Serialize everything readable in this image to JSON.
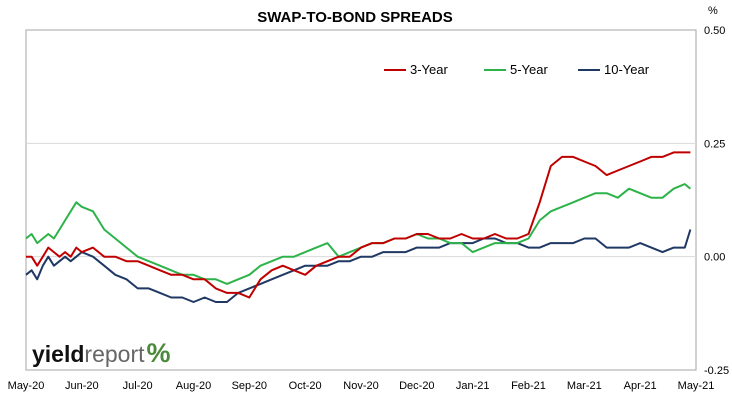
{
  "brand": {
    "yield": "yield",
    "report": "report",
    "pct": "%"
  },
  "chart_data": {
    "type": "line",
    "title": "SWAP-TO-BOND SPREADS",
    "unit": "%",
    "ylim": [
      -0.25,
      0.5
    ],
    "yticks": [
      0.5,
      0.25,
      0.0,
      -0.25
    ],
    "ytick_labels": [
      "0.50",
      "0.25",
      "0.00",
      "-0.25"
    ],
    "xlim": [
      0,
      12
    ],
    "xticks": [
      0,
      1,
      2,
      3,
      4,
      5,
      6,
      7,
      8,
      9,
      10,
      11,
      12
    ],
    "xtick_labels": [
      "May-20",
      "Jun-20",
      "Jul-20",
      "Aug-20",
      "Sep-20",
      "Oct-20",
      "Nov-20",
      "Dec-20",
      "Jan-21",
      "Feb-21",
      "Mar-21",
      "Apr-21",
      "May-21"
    ],
    "grid": "horizontal",
    "legend_position": "top-right",
    "colors": {
      "3-Year": "#c00000",
      "5-Year": "#2db34a",
      "10-Year": "#1f3864"
    },
    "series": [
      {
        "name": "3-Year",
        "color": "#c00000",
        "x": [
          0,
          0.1,
          0.2,
          0.3,
          0.4,
          0.5,
          0.6,
          0.7,
          0.8,
          0.9,
          1.0,
          1.2,
          1.4,
          1.6,
          1.8,
          2.0,
          2.2,
          2.4,
          2.6,
          2.8,
          3.0,
          3.2,
          3.4,
          3.6,
          3.8,
          4.0,
          4.2,
          4.4,
          4.6,
          4.8,
          5.0,
          5.2,
          5.4,
          5.6,
          5.8,
          6.0,
          6.2,
          6.4,
          6.6,
          6.8,
          7.0,
          7.2,
          7.4,
          7.6,
          7.8,
          8.0,
          8.2,
          8.4,
          8.6,
          8.8,
          9.0,
          9.2,
          9.4,
          9.6,
          9.8,
          10.0,
          10.2,
          10.4,
          10.6,
          10.8,
          11.0,
          11.2,
          11.4,
          11.6,
          11.8,
          11.9
        ],
        "y": [
          0.0,
          0.0,
          -0.02,
          0.0,
          0.02,
          0.01,
          0.0,
          0.01,
          0.0,
          0.02,
          0.01,
          0.02,
          0.0,
          0.0,
          -0.01,
          -0.01,
          -0.02,
          -0.03,
          -0.04,
          -0.04,
          -0.05,
          -0.05,
          -0.07,
          -0.08,
          -0.08,
          -0.09,
          -0.05,
          -0.03,
          -0.02,
          -0.03,
          -0.04,
          -0.02,
          -0.01,
          0.0,
          0.0,
          0.02,
          0.03,
          0.03,
          0.04,
          0.04,
          0.05,
          0.05,
          0.04,
          0.04,
          0.05,
          0.04,
          0.04,
          0.05,
          0.04,
          0.04,
          0.05,
          0.12,
          0.2,
          0.22,
          0.22,
          0.21,
          0.2,
          0.18,
          0.19,
          0.2,
          0.21,
          0.22,
          0.22,
          0.23,
          0.23,
          0.23
        ]
      },
      {
        "name": "5-Year",
        "color": "#2db34a",
        "x": [
          0,
          0.1,
          0.2,
          0.3,
          0.4,
          0.5,
          0.6,
          0.7,
          0.8,
          0.9,
          1.0,
          1.2,
          1.4,
          1.6,
          1.8,
          2.0,
          2.2,
          2.4,
          2.6,
          2.8,
          3.0,
          3.2,
          3.4,
          3.6,
          3.8,
          4.0,
          4.2,
          4.4,
          4.6,
          4.8,
          5.0,
          5.2,
          5.4,
          5.6,
          5.8,
          6.0,
          6.2,
          6.4,
          6.6,
          6.8,
          7.0,
          7.2,
          7.4,
          7.6,
          7.8,
          8.0,
          8.2,
          8.4,
          8.6,
          8.8,
          9.0,
          9.2,
          9.4,
          9.6,
          9.8,
          10.0,
          10.2,
          10.4,
          10.6,
          10.8,
          11.0,
          11.2,
          11.4,
          11.6,
          11.8,
          11.9
        ],
        "y": [
          0.04,
          0.05,
          0.03,
          0.04,
          0.05,
          0.04,
          0.06,
          0.08,
          0.1,
          0.12,
          0.11,
          0.1,
          0.06,
          0.04,
          0.02,
          0.0,
          -0.01,
          -0.02,
          -0.03,
          -0.04,
          -0.04,
          -0.05,
          -0.05,
          -0.06,
          -0.05,
          -0.04,
          -0.02,
          -0.01,
          0.0,
          0.0,
          0.01,
          0.02,
          0.03,
          0.0,
          0.01,
          0.02,
          0.03,
          0.03,
          0.04,
          0.04,
          0.05,
          0.04,
          0.04,
          0.03,
          0.03,
          0.01,
          0.02,
          0.03,
          0.03,
          0.03,
          0.04,
          0.08,
          0.1,
          0.11,
          0.12,
          0.13,
          0.14,
          0.14,
          0.13,
          0.15,
          0.14,
          0.13,
          0.13,
          0.15,
          0.16,
          0.15
        ]
      },
      {
        "name": "10-Year",
        "color": "#1f3864",
        "x": [
          0,
          0.1,
          0.2,
          0.3,
          0.4,
          0.5,
          0.6,
          0.7,
          0.8,
          0.9,
          1.0,
          1.2,
          1.4,
          1.6,
          1.8,
          2.0,
          2.2,
          2.4,
          2.6,
          2.8,
          3.0,
          3.2,
          3.4,
          3.6,
          3.8,
          4.0,
          4.2,
          4.4,
          4.6,
          4.8,
          5.0,
          5.2,
          5.4,
          5.6,
          5.8,
          6.0,
          6.2,
          6.4,
          6.6,
          6.8,
          7.0,
          7.2,
          7.4,
          7.6,
          7.8,
          8.0,
          8.2,
          8.4,
          8.6,
          8.8,
          9.0,
          9.2,
          9.4,
          9.6,
          9.8,
          10.0,
          10.2,
          10.4,
          10.6,
          10.8,
          11.0,
          11.2,
          11.4,
          11.6,
          11.8,
          11.9
        ],
        "y": [
          -0.04,
          -0.03,
          -0.05,
          -0.02,
          0.0,
          -0.02,
          -0.01,
          0.0,
          -0.01,
          0.0,
          0.01,
          0.0,
          -0.02,
          -0.04,
          -0.05,
          -0.07,
          -0.07,
          -0.08,
          -0.09,
          -0.09,
          -0.1,
          -0.09,
          -0.1,
          -0.1,
          -0.08,
          -0.07,
          -0.06,
          -0.05,
          -0.04,
          -0.03,
          -0.02,
          -0.02,
          -0.02,
          -0.01,
          -0.01,
          0.0,
          0.0,
          0.01,
          0.01,
          0.01,
          0.02,
          0.02,
          0.02,
          0.03,
          0.03,
          0.03,
          0.04,
          0.04,
          0.03,
          0.03,
          0.02,
          0.02,
          0.03,
          0.03,
          0.03,
          0.04,
          0.04,
          0.02,
          0.02,
          0.02,
          0.03,
          0.02,
          0.01,
          0.02,
          0.02,
          0.06
        ]
      }
    ]
  }
}
